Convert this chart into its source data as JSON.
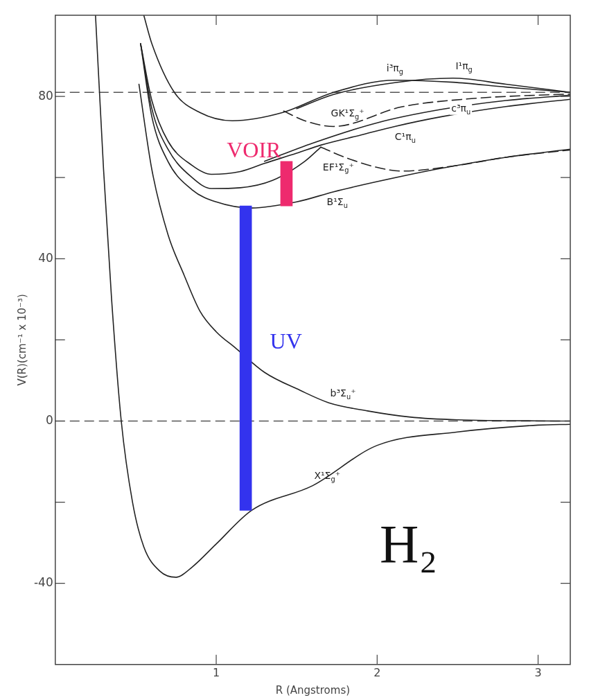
{
  "chart_data": {
    "type": "line",
    "xlabel": "R (Angstroms)",
    "ylabel": "V(R)(cm⁻¹ x 10⁻³)",
    "xlim": [
      0,
      3.2
    ],
    "xticks": [
      1,
      2,
      3
    ],
    "ylim": [
      -60,
      100
    ],
    "yticks": [
      {
        "value": -40,
        "label": "-40"
      },
      {
        "value": -20,
        "label": null
      },
      0,
      {
        "value": 20,
        "label": null
      },
      40,
      {
        "value": 60,
        "label": null
      },
      80
    ],
    "grid": false,
    "legend": false,
    "marker": "none",
    "ref_lines": [
      {
        "axis": "y",
        "value": 0,
        "line_style": "dashed",
        "color": "#555555"
      },
      {
        "axis": "y",
        "value": 81,
        "line_style": "dashed",
        "color": "#555555"
      }
    ],
    "series": [
      {
        "type": "line",
        "name": "X¹Σ$_{g}$⁺",
        "color": "#222222",
        "line_style": "solid",
        "x": [
          0.25,
          0.3,
          0.35,
          0.41,
          0.48,
          0.55,
          0.65,
          0.75,
          0.85,
          1.0,
          1.22,
          1.6,
          2.0,
          2.5,
          3.0,
          3.2
        ],
        "values": [
          100,
          62,
          30,
          0,
          -20,
          -31,
          -37,
          -38.5,
          -36,
          -30.3,
          -22,
          -15.9,
          -6,
          -2.7,
          -1,
          -0.8
        ]
      },
      {
        "type": "line",
        "name": "b³Σ$_{u}$⁺",
        "color": "#222222",
        "line_style": "solid",
        "x": [
          0.52,
          0.6,
          0.7,
          0.8,
          0.9,
          1.0,
          1.12,
          1.3,
          1.52,
          1.7,
          1.94,
          2.2,
          2.5,
          3.2
        ],
        "values": [
          83,
          62,
          46,
          36,
          27,
          22,
          18,
          12,
          7.6,
          4.5,
          2.5,
          1,
          0.3,
          0
        ]
      },
      {
        "type": "line",
        "name": "B¹Σ$_{u}$",
        "color": "#222222",
        "line_style": "solid",
        "x": [
          0.53,
          0.6,
          0.7,
          0.85,
          1.0,
          1.22,
          1.5,
          1.73,
          2.0,
          2.36,
          2.8,
          3.2
        ],
        "values": [
          93,
          75,
          64,
          57,
          54,
          52.5,
          54,
          56.5,
          59,
          62,
          65,
          67
        ]
      },
      {
        "type": "line",
        "color": "#222222",
        "line_style": "solid",
        "x": [
          0.53,
          0.6,
          0.7,
          0.85,
          0.97,
          1.15,
          1.35,
          1.55,
          1.65
        ],
        "values": [
          93,
          77,
          67,
          60,
          57.3,
          57.5,
          59.3,
          64,
          67.5
        ]
      },
      {
        "type": "line",
        "name": "EF¹Σ$_{g}$⁺",
        "color": "#222222",
        "line_style": "dashed",
        "x": [
          1.65,
          1.8,
          2.0,
          2.15,
          2.5,
          2.8,
          3.2
        ],
        "values": [
          67.5,
          65,
          62.5,
          61.6,
          63,
          65,
          66.8
        ]
      },
      {
        "type": "line",
        "name": "C¹π$_{u}$",
        "color": "#222222",
        "line_style": "solid",
        "x": [
          0.53,
          0.6,
          0.7,
          0.85,
          0.97,
          1.15,
          1.3,
          1.5,
          1.65,
          1.9,
          2.11,
          2.4,
          2.8,
          3.2
        ],
        "values": [
          93,
          79,
          69,
          63,
          60.8,
          61.5,
          63.5,
          66,
          68,
          70.5,
          72.6,
          75,
          77.5,
          79.3
        ]
      },
      {
        "type": "line",
        "name": "c³π$_{u}$",
        "color": "#222222",
        "line_style": "solid",
        "x": [
          1.3,
          1.6,
          2.0,
          2.4,
          2.8,
          3.2
        ],
        "values": [
          64,
          68.5,
          73.5,
          76.8,
          79,
          80.3
        ]
      },
      {
        "type": "line",
        "name": "GK¹Σ$_{g}$⁺",
        "color": "#222222",
        "line_style": "dashed",
        "x": [
          1.42,
          1.55,
          1.73,
          2.15,
          2.6,
          3.2
        ],
        "values": [
          76.4,
          74,
          72.6,
          77.4,
          79.5,
          80.6
        ]
      },
      {
        "type": "line",
        "name": "i³π$_{g}$",
        "color": "#222222",
        "line_style": "solid",
        "x": [
          0.55,
          0.6,
          0.74,
          0.9,
          1.1,
          1.41,
          1.73,
          2.11,
          2.47,
          2.8,
          3.2
        ],
        "values": [
          100,
          93,
          81,
          76,
          74,
          76,
          81,
          84,
          83.5,
          82.3,
          81
        ]
      },
      {
        "type": "line",
        "name": "I¹π$_{g}$",
        "color": "#222222",
        "line_style": "solid",
        "x": [
          1.5,
          1.73,
          2.11,
          2.47,
          2.8,
          3.2
        ],
        "values": [
          77,
          80.5,
          83.4,
          84.5,
          83,
          81
        ]
      },
      {
        "type": "bar",
        "name": "UV",
        "color": "#3333ee",
        "x": [
          1.22
        ],
        "base": [
          -22
        ],
        "values": [
          75
        ]
      },
      {
        "type": "bar",
        "name": "VOIR",
        "color": "#ee2a6e",
        "x": [
          1.4
        ],
        "base": [
          53
        ],
        "values": [
          11
        ]
      }
    ],
    "annotations": [
      "H₂"
    ]
  }
}
